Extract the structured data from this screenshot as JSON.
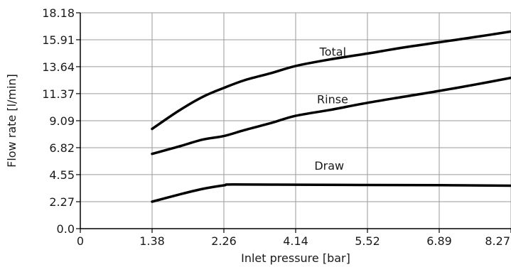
{
  "chart_data": {
    "type": "line",
    "xlabel": "Inlet pressure [bar]",
    "ylabel": "Flow rate [l/min]",
    "x_ticks": [
      "0",
      "1.38",
      "2.26",
      "4.14",
      "5.52",
      "6.89",
      "8.27"
    ],
    "y_ticks": [
      "0.0",
      "2.27",
      "4.55",
      "6.82",
      "9.09",
      "11.37",
      "13.64",
      "15.91",
      "18.18"
    ],
    "ylim": [
      0,
      18.18
    ],
    "grid": true,
    "x_scale": "categorical",
    "series": [
      {
        "name": "Total",
        "x": [
          1.38,
          1.7,
          2.0,
          2.26,
          2.8,
          3.5,
          4.14,
          4.8,
          5.52,
          6.2,
          6.89,
          7.6,
          8.27
        ],
        "y": [
          8.4,
          9.9,
          11.1,
          11.85,
          12.5,
          13.1,
          13.7,
          14.25,
          14.75,
          15.25,
          15.7,
          16.15,
          16.6
        ]
      },
      {
        "name": "Rinse",
        "x": [
          1.38,
          1.7,
          2.0,
          2.26,
          2.8,
          3.5,
          4.14,
          4.8,
          5.52,
          6.2,
          6.89,
          7.6,
          8.27
        ],
        "y": [
          6.3,
          6.9,
          7.5,
          7.8,
          8.3,
          8.9,
          9.5,
          10.0,
          10.6,
          11.1,
          11.6,
          12.15,
          12.7
        ]
      },
      {
        "name": "Draw",
        "x": [
          1.38,
          1.7,
          2.0,
          2.26,
          2.5,
          4.14,
          5.52,
          6.89,
          8.27
        ],
        "y": [
          2.27,
          2.85,
          3.35,
          3.65,
          3.72,
          3.7,
          3.68,
          3.66,
          3.62
        ]
      }
    ],
    "series_labels_text": {
      "Total": "Total",
      "Rinse": "Rinse",
      "Draw": "Draw"
    },
    "colors": {
      "line": "#000000",
      "grid": "#9a9a9a",
      "frame": "#000000",
      "text": "#1a1a1a"
    }
  }
}
